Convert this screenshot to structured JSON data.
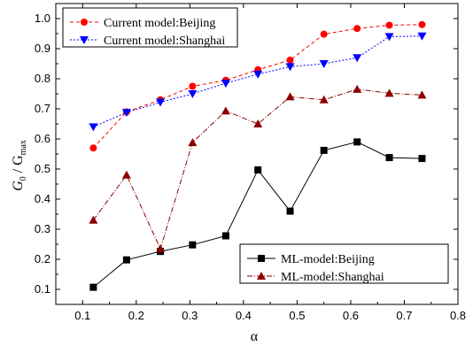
{
  "chart_data": {
    "type": "line",
    "xlabel": "α",
    "ylabel_main": "G",
    "ylabel_sub0": "0",
    "ylabel_mid": " / G",
    "ylabel_submax": "max",
    "xlim": [
      0.05,
      0.8
    ],
    "ylim": [
      0.05,
      1.05
    ],
    "xticks": [
      0.1,
      0.2,
      0.3,
      0.4,
      0.5,
      0.6,
      0.7,
      0.8
    ],
    "xtick_labels": [
      "0.1",
      "0.2",
      "0.3",
      "0.4",
      "0.5",
      "0.6",
      "0.7",
      "0.8"
    ],
    "yticks": [
      0.1,
      0.2,
      0.3,
      0.4,
      0.5,
      0.6,
      0.7,
      0.8,
      0.9,
      1.0
    ],
    "ytick_labels": [
      "0.1",
      "0.2",
      "0.3",
      "0.4",
      "0.5",
      "0.6",
      "0.7",
      "0.8",
      "0.9",
      "1.0"
    ],
    "x": [
      0.12,
      0.182,
      0.245,
      0.305,
      0.367,
      0.427,
      0.487,
      0.55,
      0.612,
      0.672,
      0.733
    ],
    "series": [
      {
        "name": "Current model:Beijing",
        "values": [
          0.57,
          0.69,
          0.73,
          0.775,
          0.795,
          0.83,
          0.862,
          0.948,
          0.967,
          0.978,
          0.98
        ],
        "color": "#ff0000",
        "marker": "circle",
        "dash": "4,3"
      },
      {
        "name": "Current model:Shanghai",
        "values": [
          0.64,
          0.688,
          0.722,
          0.75,
          0.785,
          0.815,
          0.84,
          0.85,
          0.87,
          0.94,
          0.942
        ],
        "color": "#0000ff",
        "marker": "triangle-down",
        "dash": "2,2"
      },
      {
        "name": "ML-model:Beijing",
        "values": [
          0.107,
          0.198,
          0.226,
          0.248,
          0.278,
          0.497,
          0.36,
          0.562,
          0.59,
          0.538,
          0.535
        ],
        "color": "#000000",
        "marker": "square",
        "dash": ""
      },
      {
        "name": "ML-model:Shanghai",
        "values": [
          0.33,
          0.48,
          0.235,
          0.588,
          0.693,
          0.65,
          0.74,
          0.73,
          0.765,
          0.752,
          0.746
        ],
        "color": "#8b0000",
        "marker": "triangle-up",
        "dash": "6,2,1,2"
      }
    ],
    "grid": false,
    "legends": [
      "top-left",
      "bottom-right"
    ]
  }
}
